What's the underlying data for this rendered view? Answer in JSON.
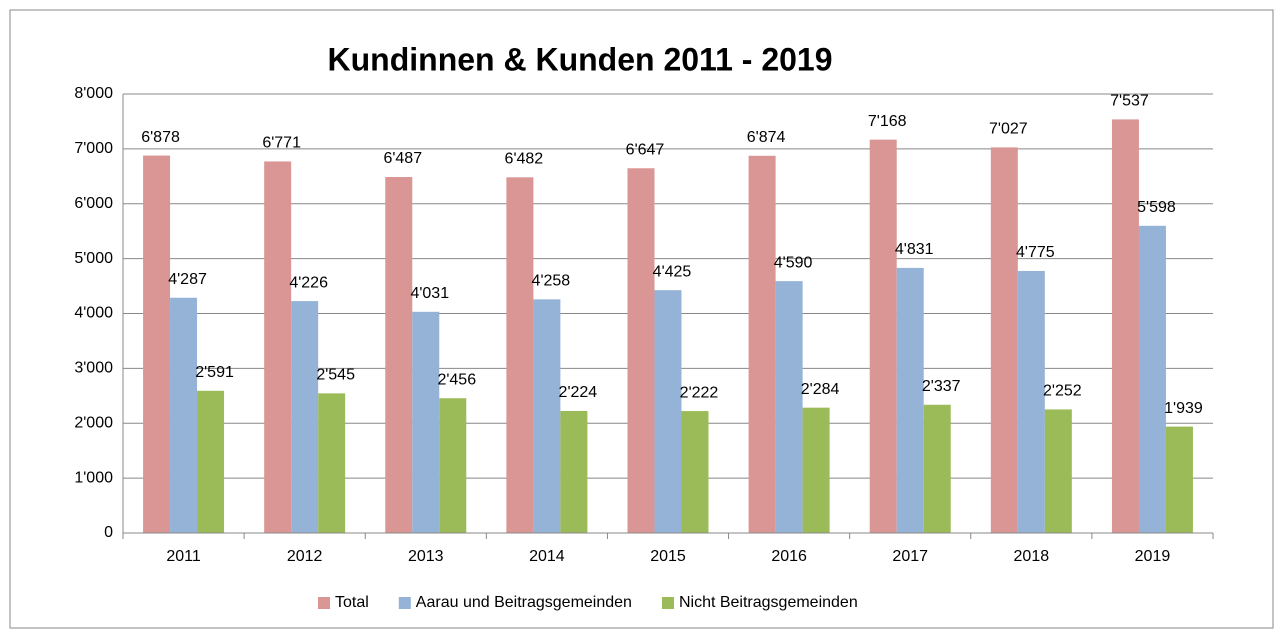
{
  "chart_data": {
    "type": "bar",
    "title": "Kundinnen & Kunden 2011 - 2019",
    "categories": [
      "2011",
      "2012",
      "2013",
      "2014",
      "2015",
      "2016",
      "2017",
      "2018",
      "2019"
    ],
    "series": [
      {
        "name": "Total",
        "color": "#d99694",
        "values": [
          6878,
          6771,
          6487,
          6482,
          6647,
          6874,
          7168,
          7027,
          7537
        ],
        "value_labels": [
          "6'878",
          "6'771",
          "6'487",
          "6'482",
          "6'647",
          "6'874",
          "7'168",
          "7'027",
          "7'537"
        ]
      },
      {
        "name": "Aarau und Beitragsgemeinden",
        "color": "#95b3d7",
        "values": [
          4287,
          4226,
          4031,
          4258,
          4425,
          4590,
          4831,
          4775,
          5598
        ],
        "value_labels": [
          "4'287",
          "4'226",
          "4'031",
          "4'258",
          "4'425",
          "4'590",
          "4'831",
          "4'775",
          "5'598"
        ]
      },
      {
        "name": "Nicht Beitragsgemeinden",
        "color": "#9bbb59",
        "values": [
          2591,
          2545,
          2456,
          2224,
          2222,
          2284,
          2337,
          2252,
          1939
        ],
        "value_labels": [
          "2'591",
          "2'545",
          "2'456",
          "2'224",
          "2'222",
          "2'284",
          "2'337",
          "2'252",
          "1'939"
        ]
      }
    ],
    "ylim": [
      0,
      8000
    ],
    "yticks": [
      0,
      {
        "value": 1000,
        "label": "1'000"
      },
      {
        "value": 2000,
        "label": "2'000"
      },
      {
        "value": 3000,
        "label": "3'000"
      },
      {
        "value": 4000,
        "label": "4'000"
      },
      {
        "value": 5000,
        "label": "5'000"
      },
      {
        "value": 6000,
        "label": "6'000"
      },
      {
        "value": 7000,
        "label": "7'000"
      },
      {
        "value": 8000,
        "label": "8'000"
      }
    ],
    "grid": true,
    "legend": "bottom"
  }
}
